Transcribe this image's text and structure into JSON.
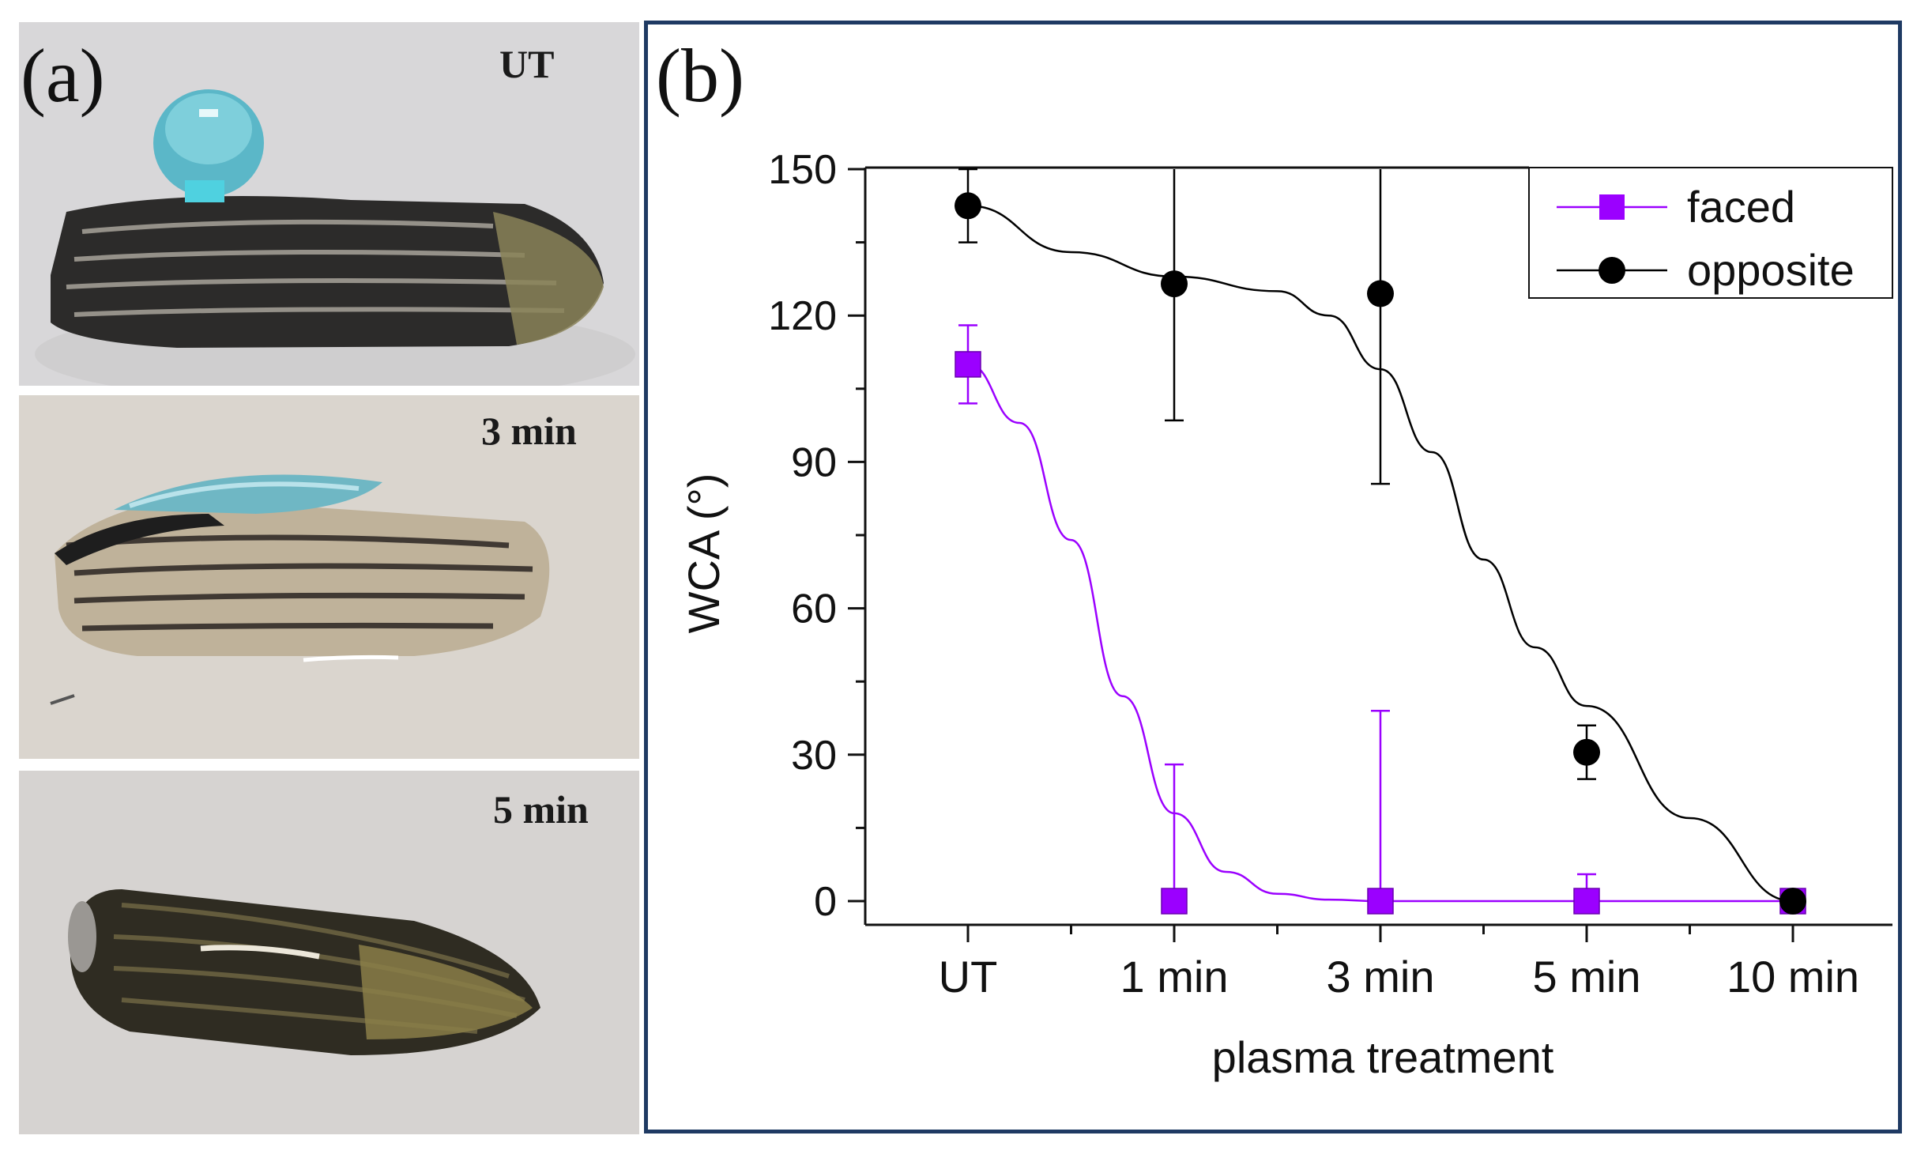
{
  "panel_a": {
    "label": "(a)",
    "photos": [
      {
        "label": "UT"
      },
      {
        "label": "3 min"
      },
      {
        "label": "5 min"
      }
    ]
  },
  "panel_b": {
    "label": "(b)"
  },
  "colors": {
    "faced": "#9b00ff",
    "opposite": "#000000",
    "frame": "#1f3a63"
  },
  "chart_data": {
    "type": "scatter",
    "title": "",
    "xlabel": "plasma treatment",
    "ylabel": "WCA (°)",
    "categories": [
      "UT",
      "1 min",
      "3 min",
      "5 min",
      "10 min"
    ],
    "ylim": [
      0,
      150
    ],
    "yticks": [
      0,
      30,
      60,
      90,
      120,
      150
    ],
    "legend_position": "top-right",
    "series": [
      {
        "name": "faced",
        "marker": "square",
        "values": [
          110,
          0,
          0,
          0,
          0
        ],
        "error_plus": [
          8,
          28,
          39,
          5.5,
          0
        ],
        "error_minus": [
          8,
          0,
          0,
          0,
          0
        ],
        "fit": [
          [
            0,
            110
          ],
          [
            0.25,
            98
          ],
          [
            0.5,
            74
          ],
          [
            0.75,
            42
          ],
          [
            1,
            18
          ],
          [
            1.25,
            6
          ],
          [
            1.5,
            1.5
          ],
          [
            1.75,
            0.3
          ],
          [
            2,
            0
          ],
          [
            3,
            0
          ],
          [
            4,
            0
          ]
        ]
      },
      {
        "name": "opposite",
        "marker": "circle",
        "values": [
          142.5,
          126.5,
          124.5,
          30.5,
          0
        ],
        "error_plus": [
          7.5,
          26,
          26,
          5.5,
          0
        ],
        "error_minus": [
          7.5,
          28,
          39,
          5.5,
          0
        ],
        "fit": [
          [
            0,
            142.5
          ],
          [
            0.5,
            133
          ],
          [
            1,
            128
          ],
          [
            1.5,
            125
          ],
          [
            1.75,
            120
          ],
          [
            2,
            109
          ],
          [
            2.25,
            92
          ],
          [
            2.5,
            70
          ],
          [
            2.75,
            52
          ],
          [
            3,
            40
          ],
          [
            3.5,
            17
          ],
          [
            4,
            0
          ]
        ]
      }
    ]
  }
}
